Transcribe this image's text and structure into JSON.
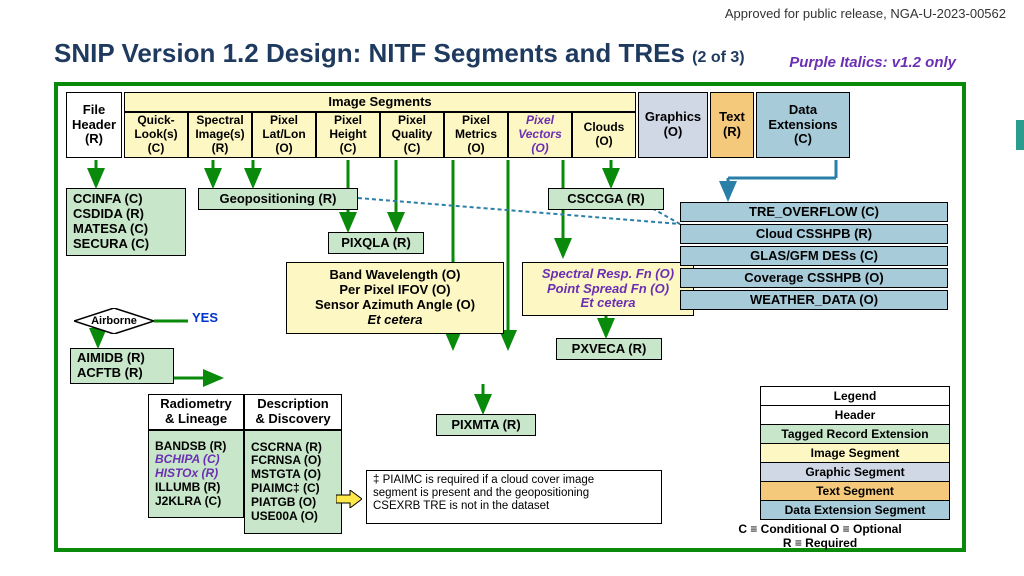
{
  "header_note": "Approved for public release, NGA-U-2023-00562",
  "title_main": "SNIP Version 1.2 Design: NITF Segments and TREs",
  "title_sub": "(2 of 3)",
  "purple_note": "Purple Italics: v1.2 only",
  "colors": {
    "border_green": "#0a8a0a",
    "yellow": "#fdf7c3",
    "green_box": "#c8e6c9",
    "grey": "#d0d7e5",
    "orange": "#f5c97b",
    "blue": "#a8cbd9",
    "purple": "#6b2fb3",
    "arrow_green": "#0a8a0a",
    "arrow_blue": "#2a7fa8"
  },
  "top_row": {
    "file_header": "File\nHeader\n(R)",
    "image_segments_title": "Image Segments",
    "cols": [
      {
        "text": "Quick-\nLook(s)\n(C)"
      },
      {
        "text": "Spectral\nImage(s)\n(R)"
      },
      {
        "text": "Pixel\nLat/Lon\n(O)"
      },
      {
        "text": "Pixel\nHeight\n(C)"
      },
      {
        "text": "Pixel\nQuality\n(C)"
      },
      {
        "text": "Pixel\nMetrics\n(O)"
      },
      {
        "text": "Pixel\nVectors\n(O)",
        "purple": true
      },
      {
        "text": "Clouds\n(O)"
      }
    ],
    "graphics": "Graphics\n(O)",
    "text": "Text\n(R)",
    "data_ext": "Data\nExtensions\n(C)"
  },
  "ccinfa_block": [
    "CCINFA (C)",
    "CSDIDA (R)",
    "MATESA (C)",
    "SECURA (C)"
  ],
  "geopos": "Geopositioning (R)",
  "pixqla": "PIXQLA (R)",
  "csccga": "CSCCGA (R)",
  "airborne": "Airborne",
  "yes": "YES",
  "aimidb_block": [
    "AIMIDB (R)",
    "ACFTB (R)"
  ],
  "band_block": [
    "Band Wavelength (O)",
    "Per Pixel IFOV (O)",
    "Sensor Azimuth Angle (O)"
  ],
  "band_etc": "Et cetera",
  "spectral_block": [
    "Spectral Resp. Fn (O)",
    "Point Spread Fn (O)",
    "Et cetera"
  ],
  "pxveca": "PXVECA (R)",
  "pixmta": "PIXMTA (R)",
  "radiometry_title": "Radiometry\n& Lineage",
  "description_title": "Description\n& Discovery",
  "radiometry_items": [
    "BANDSB (R)",
    "BCHIPA (C)",
    "HISTOx (R)",
    "ILLUMB (R)",
    "J2KLRA (C)"
  ],
  "radiometry_purple": [
    false,
    true,
    true,
    false,
    false
  ],
  "description_items": [
    "CSCRNA (R)",
    "FCRNSA (O)",
    "MSTGTA (O)",
    "PIAIMC‡ (C)",
    "PIATGB (O)",
    "USE00A (O)"
  ],
  "data_ext_items": [
    "TRE_OVERFLOW (C)",
    "Cloud CSSHPB (R)",
    "GLAS/GFM DESs (C)",
    "Coverage CSSHPB (O)",
    "WEATHER_DATA (O)"
  ],
  "footnote": "‡ PIAIMC is required if a cloud cover image\n   segment is present and the geopositioning\n   CSEXRB TRE is not in the dataset",
  "legend": {
    "title": "Legend",
    "rows": [
      {
        "label": "Header",
        "bg": "#ffffff"
      },
      {
        "label": "Tagged Record Extension",
        "bg": "#c8e6c9"
      },
      {
        "label": "Image Segment",
        "bg": "#fdf7c3"
      },
      {
        "label": "Graphic Segment",
        "bg": "#d0d7e5"
      },
      {
        "label": "Text Segment",
        "bg": "#f5c97b"
      },
      {
        "label": "Data Extension Segment",
        "bg": "#a8cbd9"
      }
    ],
    "foot1": "C ≡ Conditional   O ≡ Optional",
    "foot2": "R ≡ Required"
  }
}
